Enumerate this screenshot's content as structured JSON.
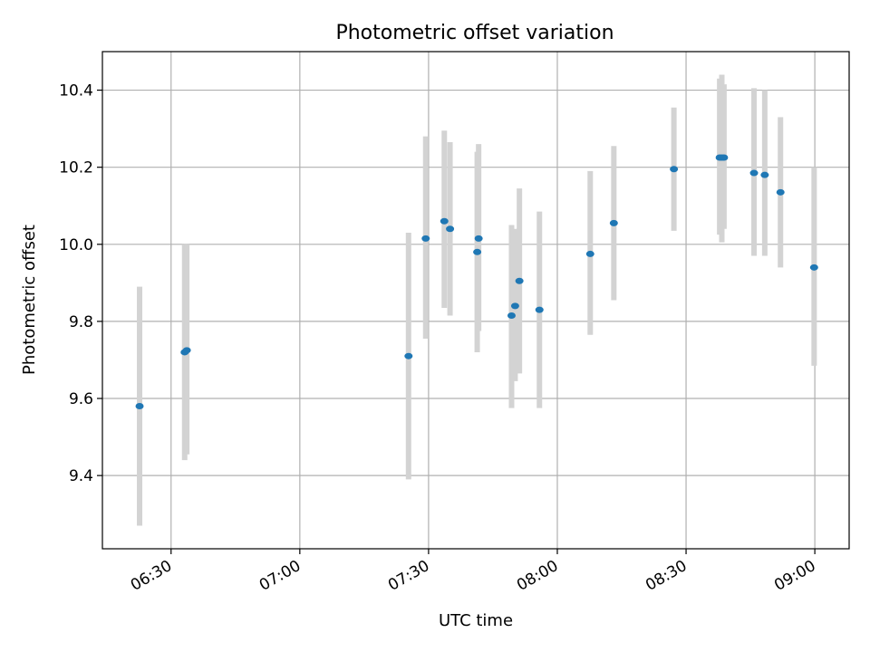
{
  "chart_data": {
    "type": "scatter",
    "title": "Photometric offset variation",
    "xlabel": "UTC time",
    "ylabel": "Photometric offset",
    "xlim": [
      "06:14",
      "09:08"
    ],
    "ylim": [
      9.21,
      10.5
    ],
    "grid": true,
    "x_ticks": [
      "06:30",
      "07:00",
      "07:30",
      "08:00",
      "08:30",
      "09:00"
    ],
    "y_ticks": [
      9.4,
      9.6,
      9.8,
      10.0,
      10.2,
      10.4
    ],
    "y_tick_labels": [
      "9.4",
      "9.6",
      "9.8",
      "10.0",
      "10.2",
      "10.4"
    ],
    "marker_color": "#1f77b4",
    "errorbar_color": "#d3d3d3",
    "points": [
      {
        "x": "06:22:40",
        "y": 9.58,
        "ylo": 9.27,
        "yhi": 9.89
      },
      {
        "x": "06:33:10",
        "y": 9.72,
        "ylo": 9.44,
        "yhi": 10.0
      },
      {
        "x": "06:33:40",
        "y": 9.725,
        "ylo": 9.455,
        "yhi": 10.0
      },
      {
        "x": "07:25:20",
        "y": 9.71,
        "ylo": 9.39,
        "yhi": 10.03
      },
      {
        "x": "07:29:20",
        "y": 10.015,
        "ylo": 9.755,
        "yhi": 10.28
      },
      {
        "x": "07:33:40",
        "y": 10.06,
        "ylo": 9.835,
        "yhi": 10.295
      },
      {
        "x": "07:35:00",
        "y": 10.04,
        "ylo": 9.815,
        "yhi": 10.265
      },
      {
        "x": "07:41:20",
        "y": 9.98,
        "ylo": 9.72,
        "yhi": 10.24
      },
      {
        "x": "07:41:40",
        "y": 10.015,
        "ylo": 9.775,
        "yhi": 10.26
      },
      {
        "x": "07:49:20",
        "y": 9.815,
        "ylo": 9.575,
        "yhi": 10.05
      },
      {
        "x": "07:50:10",
        "y": 9.84,
        "ylo": 9.645,
        "yhi": 10.04
      },
      {
        "x": "07:51:10",
        "y": 9.905,
        "ylo": 9.665,
        "yhi": 10.145
      },
      {
        "x": "07:55:50",
        "y": 9.83,
        "ylo": 9.575,
        "yhi": 10.085
      },
      {
        "x": "08:07:40",
        "y": 9.975,
        "ylo": 9.765,
        "yhi": 10.19
      },
      {
        "x": "08:13:10",
        "y": 10.055,
        "ylo": 9.855,
        "yhi": 10.255
      },
      {
        "x": "08:27:10",
        "y": 10.195,
        "ylo": 10.035,
        "yhi": 10.355
      },
      {
        "x": "08:37:50",
        "y": 10.225,
        "ylo": 10.025,
        "yhi": 10.43
      },
      {
        "x": "08:38:20",
        "y": 10.225,
        "ylo": 10.005,
        "yhi": 10.44
      },
      {
        "x": "08:38:50",
        "y": 10.225,
        "ylo": 10.04,
        "yhi": 10.415
      },
      {
        "x": "08:45:50",
        "y": 10.185,
        "ylo": 9.97,
        "yhi": 10.405
      },
      {
        "x": "08:48:20",
        "y": 10.18,
        "ylo": 9.97,
        "yhi": 10.4
      },
      {
        "x": "08:52:00",
        "y": 10.135,
        "ylo": 9.94,
        "yhi": 10.33
      },
      {
        "x": "08:59:50",
        "y": 9.94,
        "ylo": 9.685,
        "yhi": 10.2
      }
    ]
  }
}
